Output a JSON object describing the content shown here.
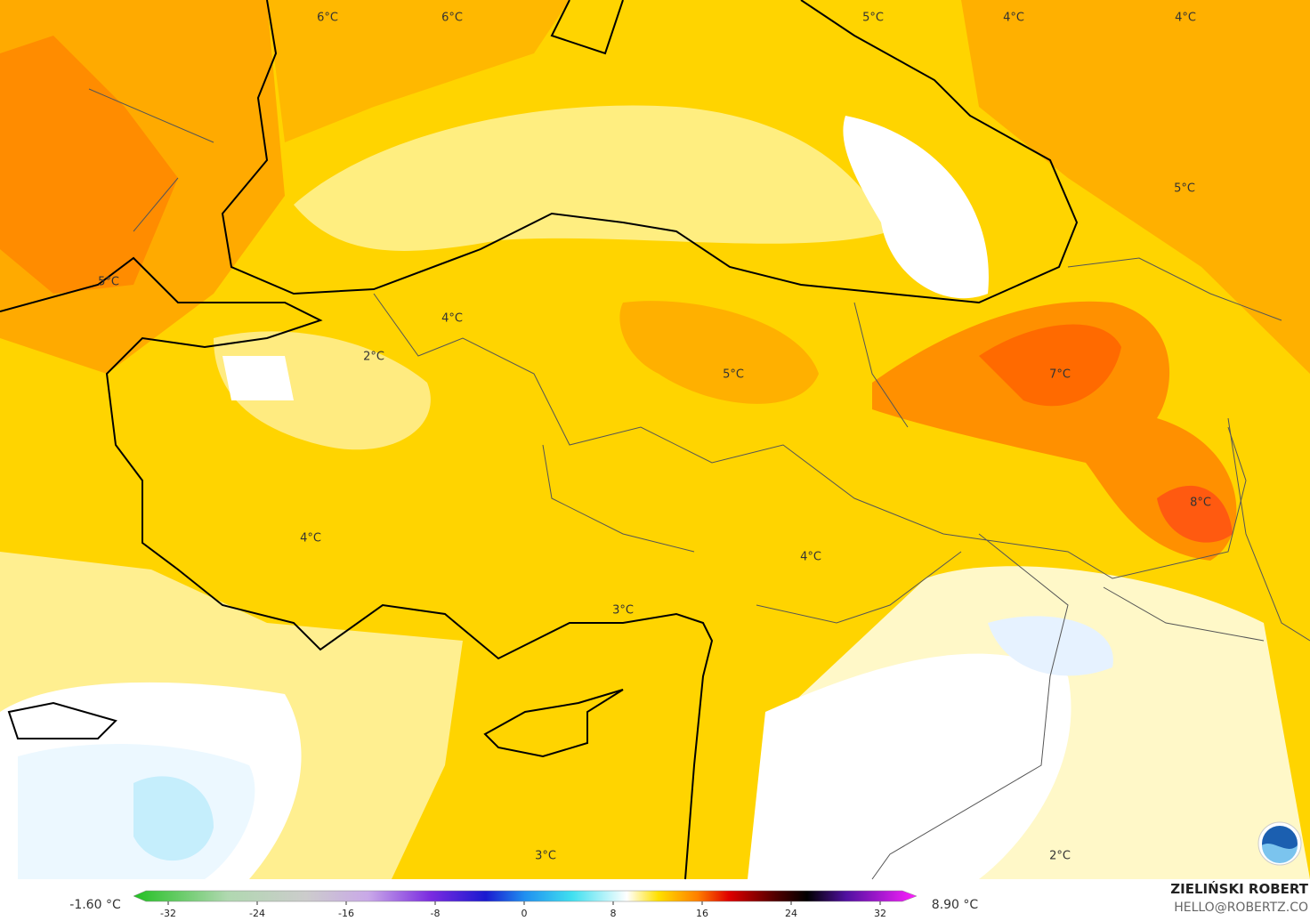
{
  "map": {
    "labels": [
      {
        "text": "6°C"
      },
      {
        "text": "6°C"
      },
      {
        "text": "5°C"
      },
      {
        "text": "4°C"
      },
      {
        "text": "4°C"
      },
      {
        "text": "5°C"
      },
      {
        "text": "5°C"
      },
      {
        "text": "4°C"
      },
      {
        "text": "2°C"
      },
      {
        "text": "5°C"
      },
      {
        "text": "7°C"
      },
      {
        "text": "8°C"
      },
      {
        "text": "4°C"
      },
      {
        "text": "4°C"
      },
      {
        "text": "3°C"
      },
      {
        "text": "3°C"
      },
      {
        "text": "2°C"
      }
    ]
  },
  "colorbar": {
    "min_label": "-1.60 °C",
    "max_label": "8.90 °C",
    "range": [
      -34,
      34
    ],
    "ticks": [
      -32,
      -24,
      -16,
      -8,
      0,
      8,
      16,
      24,
      32
    ]
  },
  "credits": {
    "author": "ZIELIŃSKI ROBERT",
    "contact": "HELLO@ROBERTZ.CO"
  }
}
